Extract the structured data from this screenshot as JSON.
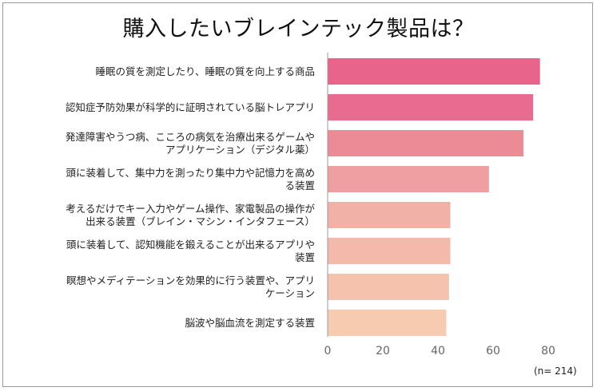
{
  "chart_data": {
    "type": "bar",
    "orientation": "horizontal",
    "title": "購入したいブレインテック製品は？",
    "categories": [
      [
        "睡眠の質を測定したり、睡眠の質を向上する商品"
      ],
      [
        "認知症予防効果が科学的に証明されている脳トレアプリ"
      ],
      [
        "発達障害やうつ病、こころの病気を治療出来るゲームや",
        "アプリケーション（デジタル薬）"
      ],
      [
        "頭に装着して、集中力を測ったり集中力や記憶力を高め",
        "る装置"
      ],
      [
        "考えるだけでキー入力やゲーム操作、家電製品の操作が",
        "出来る装置（ブレイン・マシン・インタフェース）"
      ],
      [
        "頭に装着して、認知機能を鍛えることが出来るアプリや",
        "装置"
      ],
      [
        "瞑想やメディテーションを効果的に行う装置や、アプリ",
        "ケーション"
      ],
      [
        "脳波や脳血流を測定する装置"
      ]
    ],
    "values": [
      77,
      74.5,
      71,
      58.5,
      44.5,
      44.5,
      44,
      43
    ],
    "colors": [
      "#e8648a",
      "#e96b8f",
      "#ec8a96",
      "#ef9ea2",
      "#f2b1a7",
      "#f4b9aa",
      "#f5c2ad",
      "#f6cbaf"
    ],
    "xlim": [
      0,
      80
    ],
    "xticks": [
      0,
      20,
      40,
      60,
      80
    ],
    "xlabel": "",
    "ylabel": "",
    "grid": false,
    "note": "(n= 214)"
  }
}
